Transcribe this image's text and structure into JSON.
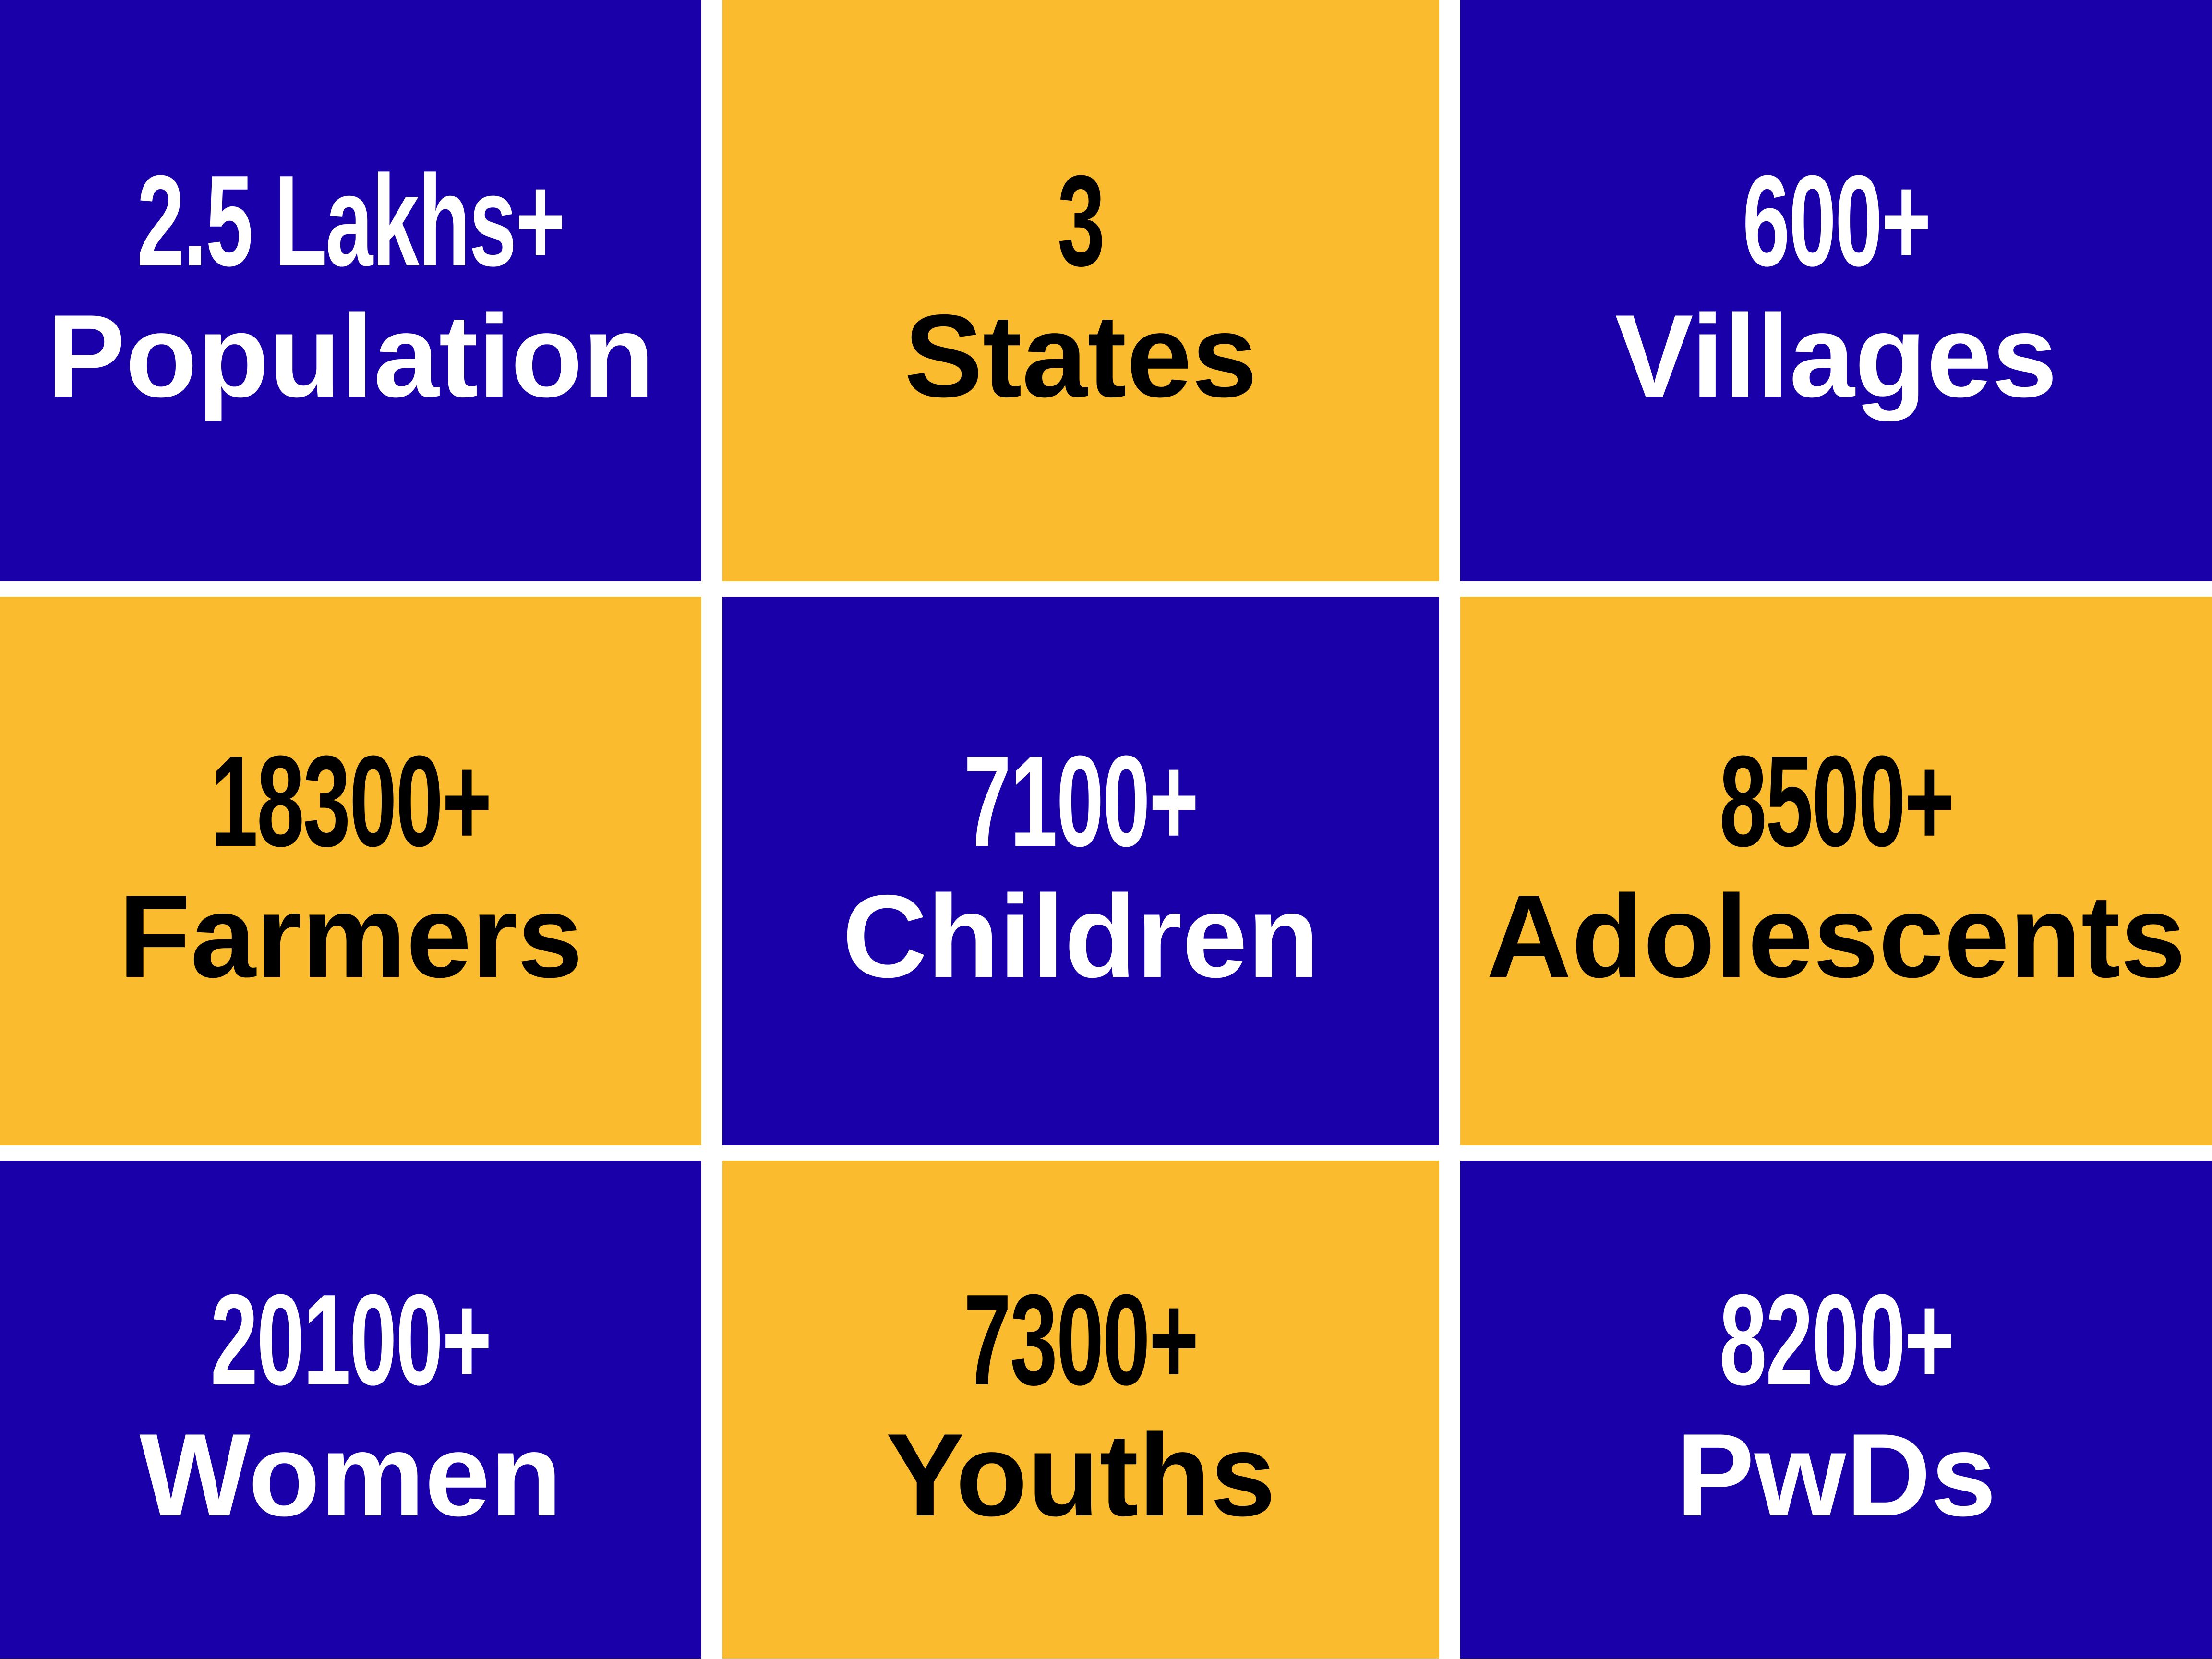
{
  "tiles": [
    {
      "number": "2.5 Lakhs+",
      "label": "Population"
    },
    {
      "number": "3",
      "label": "States"
    },
    {
      "number": "600+",
      "label": "Villages"
    },
    {
      "number": "18300+",
      "label": "Farmers"
    },
    {
      "number": "7100+",
      "label": "Children"
    },
    {
      "number": "8500+",
      "label": "Adolescents"
    },
    {
      "number": "20100+",
      "label": "Women"
    },
    {
      "number": "7300+",
      "label": "Youths"
    },
    {
      "number": "8200+",
      "label": "PwDs"
    }
  ]
}
